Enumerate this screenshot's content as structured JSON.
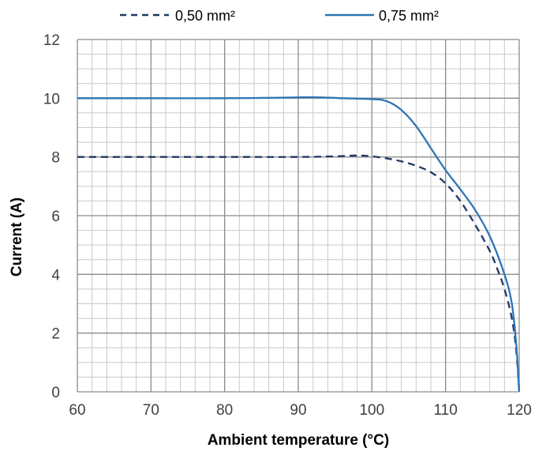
{
  "chart_data": {
    "type": "line",
    "xlabel": "Ambient  temperature (°C)",
    "ylabel": "Current (A)",
    "xlim": [
      60,
      120
    ],
    "ylim": [
      0,
      12
    ],
    "x_major_ticks": [
      60,
      70,
      80,
      90,
      100,
      110,
      120
    ],
    "y_major_ticks": [
      0,
      2,
      4,
      6,
      8,
      10,
      12
    ],
    "x_minor_step": 2,
    "y_minor_step": 0.5,
    "grid": true,
    "legend_position": "top",
    "series": [
      {
        "name": "0,50 mm²",
        "style": "dashed",
        "color": "#1f3864",
        "points": [
          [
            60,
            8
          ],
          [
            70,
            8
          ],
          [
            80,
            8
          ],
          [
            90,
            8
          ],
          [
            95,
            8.02
          ],
          [
            98,
            8.05
          ],
          [
            100,
            8.02
          ],
          [
            102,
            7.95
          ],
          [
            104,
            7.85
          ],
          [
            106,
            7.7
          ],
          [
            108,
            7.48
          ],
          [
            110,
            7.1
          ],
          [
            112,
            6.5
          ],
          [
            114,
            5.7
          ],
          [
            116,
            4.8
          ],
          [
            117,
            4.2
          ],
          [
            118,
            3.5
          ],
          [
            119,
            2.5
          ],
          [
            119.6,
            1.4
          ],
          [
            120,
            0
          ]
        ]
      },
      {
        "name": "0,75 mm²",
        "style": "solid",
        "color": "#2e75b6",
        "points": [
          [
            60,
            10
          ],
          [
            70,
            10
          ],
          [
            80,
            10
          ],
          [
            85,
            10.01
          ],
          [
            90,
            10.03
          ],
          [
            93,
            10.03
          ],
          [
            96,
            10.0
          ],
          [
            100,
            9.97
          ],
          [
            102,
            9.9
          ],
          [
            104,
            9.6
          ],
          [
            106,
            9.05
          ],
          [
            108,
            8.3
          ],
          [
            110,
            7.55
          ],
          [
            112,
            6.9
          ],
          [
            114,
            6.2
          ],
          [
            116,
            5.3
          ],
          [
            118,
            4.0
          ],
          [
            119,
            3.0
          ],
          [
            119.6,
            1.6
          ],
          [
            120,
            0
          ]
        ]
      }
    ]
  }
}
